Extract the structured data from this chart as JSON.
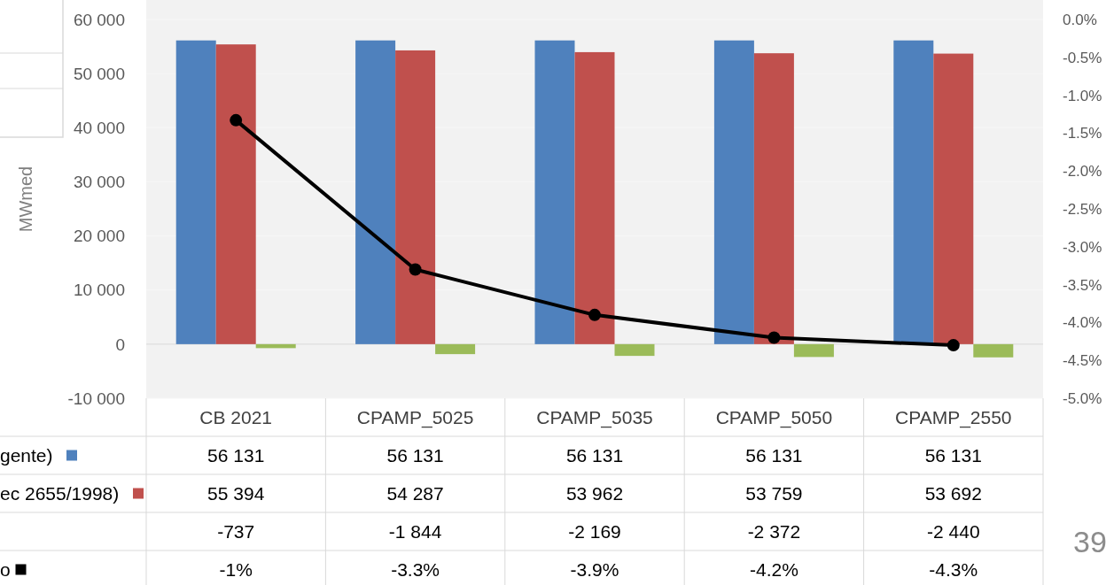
{
  "chart_data": {
    "type": "bar",
    "ylabel": "MWmed",
    "categories": [
      "CB 2021",
      "CPAMP_5025",
      "CPAMP_5035",
      "CPAMP_5050",
      "CPAMP_2550"
    ],
    "series": [
      {
        "name": "gente)",
        "color": "#4f81bd",
        "values": [
          56131,
          56131,
          56131,
          56131,
          56131
        ],
        "value_labels": [
          "56 131",
          "56 131",
          "56 131",
          "56 131",
          "56 131"
        ]
      },
      {
        "name": "ec 2655/1998)",
        "color": "#c0504d",
        "values": [
          55394,
          54287,
          53962,
          53759,
          53692
        ],
        "value_labels": [
          "55 394",
          "54 287",
          "53 962",
          "53 759",
          "53 692"
        ]
      },
      {
        "color": "#9bbb59",
        "values": [
          -737,
          -1844,
          -2169,
          -2372,
          -2440
        ],
        "value_labels": [
          "-737",
          "-1 844",
          "-2 169",
          "-2 372",
          "-2 440"
        ]
      },
      {
        "name": "o",
        "type": "line",
        "axis": "y2",
        "color": "#000000",
        "marker": "circle",
        "line_style": "solid",
        "values": [
          -1.33,
          -3.3,
          -3.9,
          -4.2,
          -4.3
        ],
        "value_labels": [
          "-1%",
          "-3.3%",
          "-3.9%",
          "-4.2%",
          "-4.3%"
        ]
      }
    ],
    "ylim": [
      -10000,
      63600
    ],
    "yticks": [
      {
        "value": -10000,
        "label": "-10 000"
      },
      0,
      {
        "value": 10000,
        "label": "10 000"
      },
      {
        "value": 20000,
        "label": "20 000"
      },
      {
        "value": 30000,
        "label": "30 000"
      },
      {
        "value": 40000,
        "label": "40 000"
      },
      {
        "value": 50000,
        "label": "50 000"
      },
      {
        "value": 60000,
        "label": "60 000"
      }
    ],
    "y2lim": [
      -5,
      0
    ],
    "y2ticks": [
      {
        "value": -5,
        "label": "-5.0%"
      },
      {
        "value": -4.5,
        "label": "-4.5%"
      },
      {
        "value": -4,
        "label": "-4.0%"
      },
      {
        "value": -3.5,
        "label": "-3.5%"
      },
      {
        "value": -3,
        "label": "-3.0%"
      },
      {
        "value": -2.5,
        "label": "-2.5%"
      },
      {
        "value": -2,
        "label": "-2.0%"
      },
      {
        "value": -1.5,
        "label": "-1.5%"
      },
      {
        "value": -1,
        "label": "-1.0%"
      },
      {
        "value": -0.5,
        "label": "-0.5%"
      },
      {
        "value": 0,
        "label": "0.0%"
      }
    ],
    "grid": "y",
    "legend": "bottom left",
    "annotations": [
      "39"
    ]
  }
}
